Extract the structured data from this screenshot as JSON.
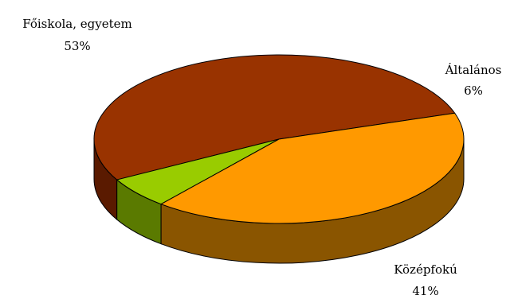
{
  "chart_data": {
    "type": "pie",
    "title": "",
    "style": "3d",
    "slices": [
      {
        "label": "Főiskola, egyetem",
        "value": 53,
        "value_label": "53%",
        "color": "#993300",
        "side_color": "#5a1a00"
      },
      {
        "label": "Általános",
        "value": 6,
        "value_label": "6%",
        "color": "#99cc00",
        "side_color": "#5a7a00"
      },
      {
        "label": "Középfokú",
        "value": 41,
        "value_label": "41%",
        "color": "#ff9900",
        "side_color": "#8a5500"
      }
    ]
  }
}
